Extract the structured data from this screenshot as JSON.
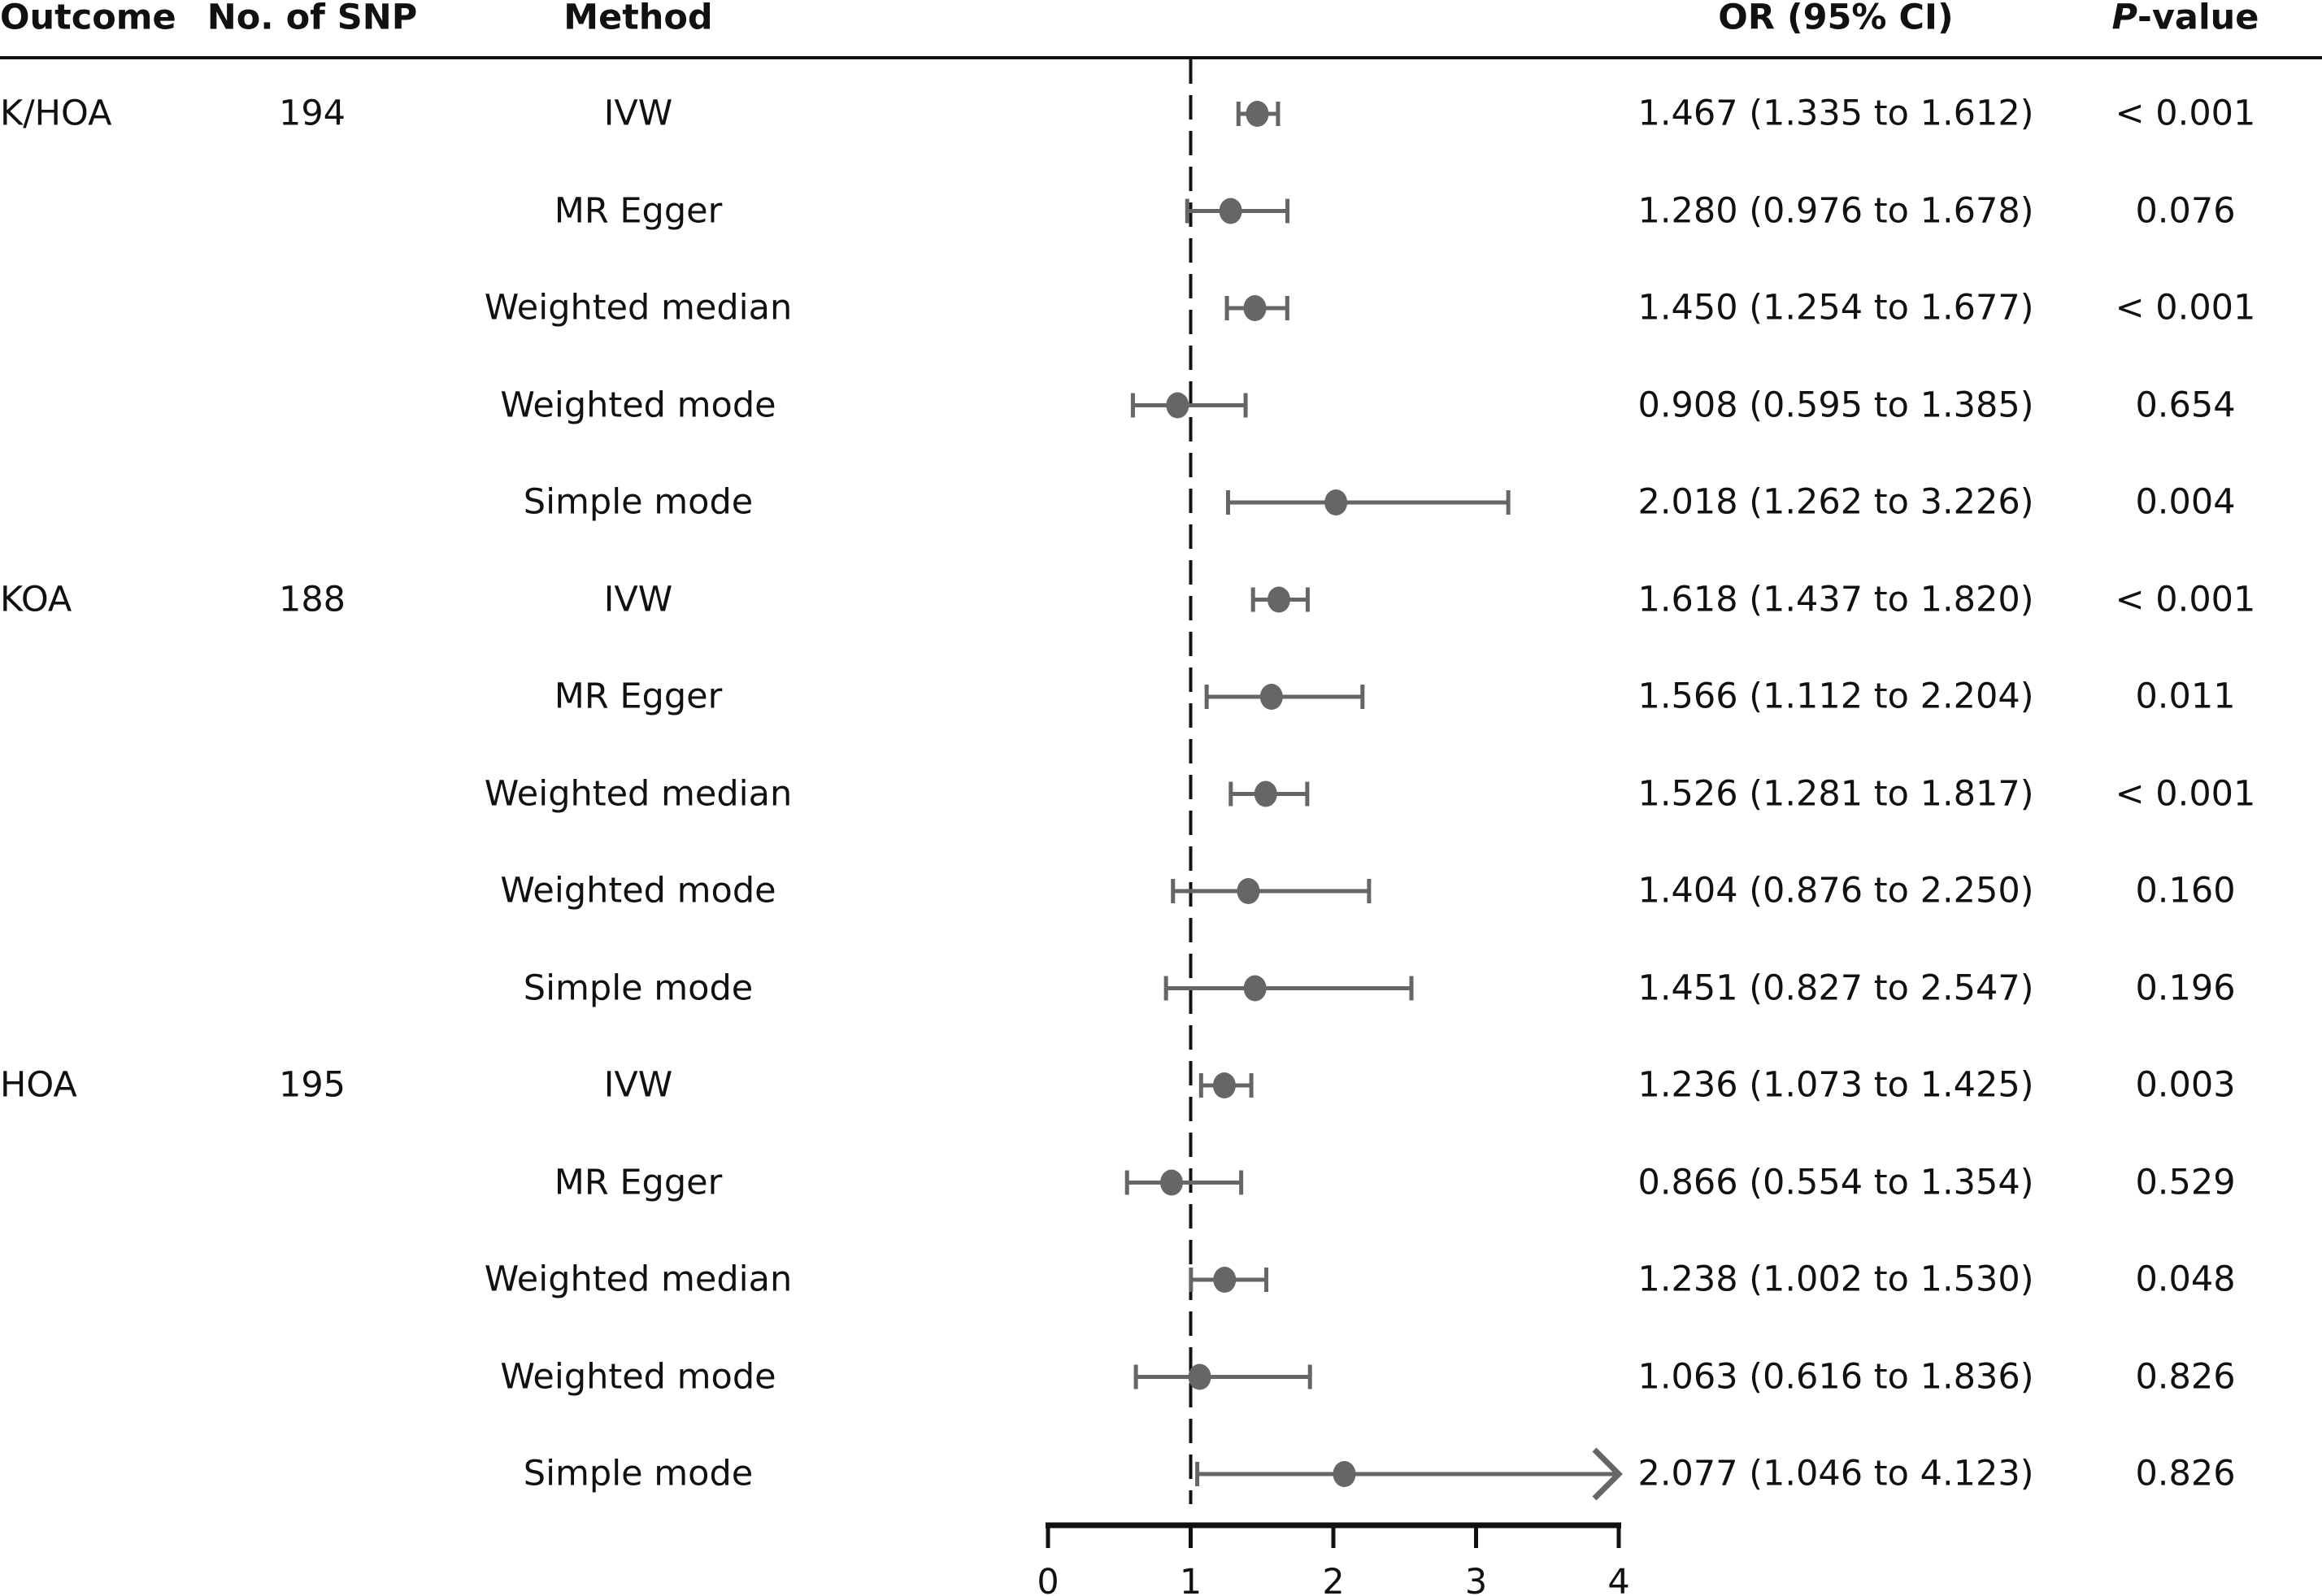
{
  "headers": {
    "outcome": "Outcome",
    "nsnp": "No. of SNP",
    "method": "Method",
    "or": "OR (95% CI)",
    "p_italic": "P",
    "p_rest": "-value"
  },
  "colors": {
    "marker": "#666666",
    "axis": "#111111"
  },
  "chart_data": {
    "type": "forest",
    "xlim": [
      0,
      4
    ],
    "xticks": [
      "0",
      "1",
      "2",
      "3",
      "4"
    ],
    "reference_line": 1,
    "rows": [
      {
        "outcome": "K/HOA",
        "nsnp": "194",
        "method": "IVW",
        "or": 1.467,
        "lo": 1.335,
        "hi": 1.612,
        "or_text": "1.467 (1.335 to 1.612)",
        "p": "< 0.001"
      },
      {
        "outcome": "",
        "nsnp": "",
        "method": "MR Egger",
        "or": 1.28,
        "lo": 0.976,
        "hi": 1.678,
        "or_text": "1.280 (0.976 to 1.678)",
        "p": "0.076"
      },
      {
        "outcome": "",
        "nsnp": "",
        "method": "Weighted median",
        "or": 1.45,
        "lo": 1.254,
        "hi": 1.677,
        "or_text": "1.450 (1.254 to 1.677)",
        "p": "< 0.001"
      },
      {
        "outcome": "",
        "nsnp": "",
        "method": "Weighted mode",
        "or": 0.908,
        "lo": 0.595,
        "hi": 1.385,
        "or_text": "0.908 (0.595 to 1.385)",
        "p": "0.654"
      },
      {
        "outcome": "",
        "nsnp": "",
        "method": "Simple mode",
        "or": 2.018,
        "lo": 1.262,
        "hi": 3.226,
        "or_text": "2.018 (1.262 to 3.226)",
        "p": "0.004"
      },
      {
        "outcome": "KOA",
        "nsnp": "188",
        "method": "IVW",
        "or": 1.618,
        "lo": 1.437,
        "hi": 1.82,
        "or_text": "1.618 (1.437 to 1.820)",
        "p": "< 0.001"
      },
      {
        "outcome": "",
        "nsnp": "",
        "method": "MR Egger",
        "or": 1.566,
        "lo": 1.112,
        "hi": 2.204,
        "or_text": "1.566 (1.112 to 2.204)",
        "p": "0.011"
      },
      {
        "outcome": "",
        "nsnp": "",
        "method": "Weighted median",
        "or": 1.526,
        "lo": 1.281,
        "hi": 1.817,
        "or_text": "1.526 (1.281 to 1.817)",
        "p": "< 0.001"
      },
      {
        "outcome": "",
        "nsnp": "",
        "method": "Weighted mode",
        "or": 1.404,
        "lo": 0.876,
        "hi": 2.25,
        "or_text": "1.404 (0.876 to 2.250)",
        "p": "0.160"
      },
      {
        "outcome": "",
        "nsnp": "",
        "method": "Simple mode",
        "or": 1.451,
        "lo": 0.827,
        "hi": 2.547,
        "or_text": "1.451 (0.827 to 2.547)",
        "p": "0.196"
      },
      {
        "outcome": "HOA",
        "nsnp": "195",
        "method": "IVW",
        "or": 1.236,
        "lo": 1.073,
        "hi": 1.425,
        "or_text": "1.236 (1.073 to 1.425)",
        "p": "0.003"
      },
      {
        "outcome": "",
        "nsnp": "",
        "method": "MR Egger",
        "or": 0.866,
        "lo": 0.554,
        "hi": 1.354,
        "or_text": "0.866 (0.554 to 1.354)",
        "p": "0.529"
      },
      {
        "outcome": "",
        "nsnp": "",
        "method": "Weighted median",
        "or": 1.238,
        "lo": 1.002,
        "hi": 1.53,
        "or_text": "1.238 (1.002 to 1.530)",
        "p": "0.048"
      },
      {
        "outcome": "",
        "nsnp": "",
        "method": "Weighted mode",
        "or": 1.063,
        "lo": 0.616,
        "hi": 1.836,
        "or_text": "1.063 (0.616 to 1.836)",
        "p": "0.826"
      },
      {
        "outcome": "",
        "nsnp": "",
        "method": "Simple mode",
        "or": 2.077,
        "lo": 1.046,
        "hi": 4.123,
        "or_text": "2.077 (1.046 to 4.123)",
        "p": "0.826"
      }
    ]
  }
}
